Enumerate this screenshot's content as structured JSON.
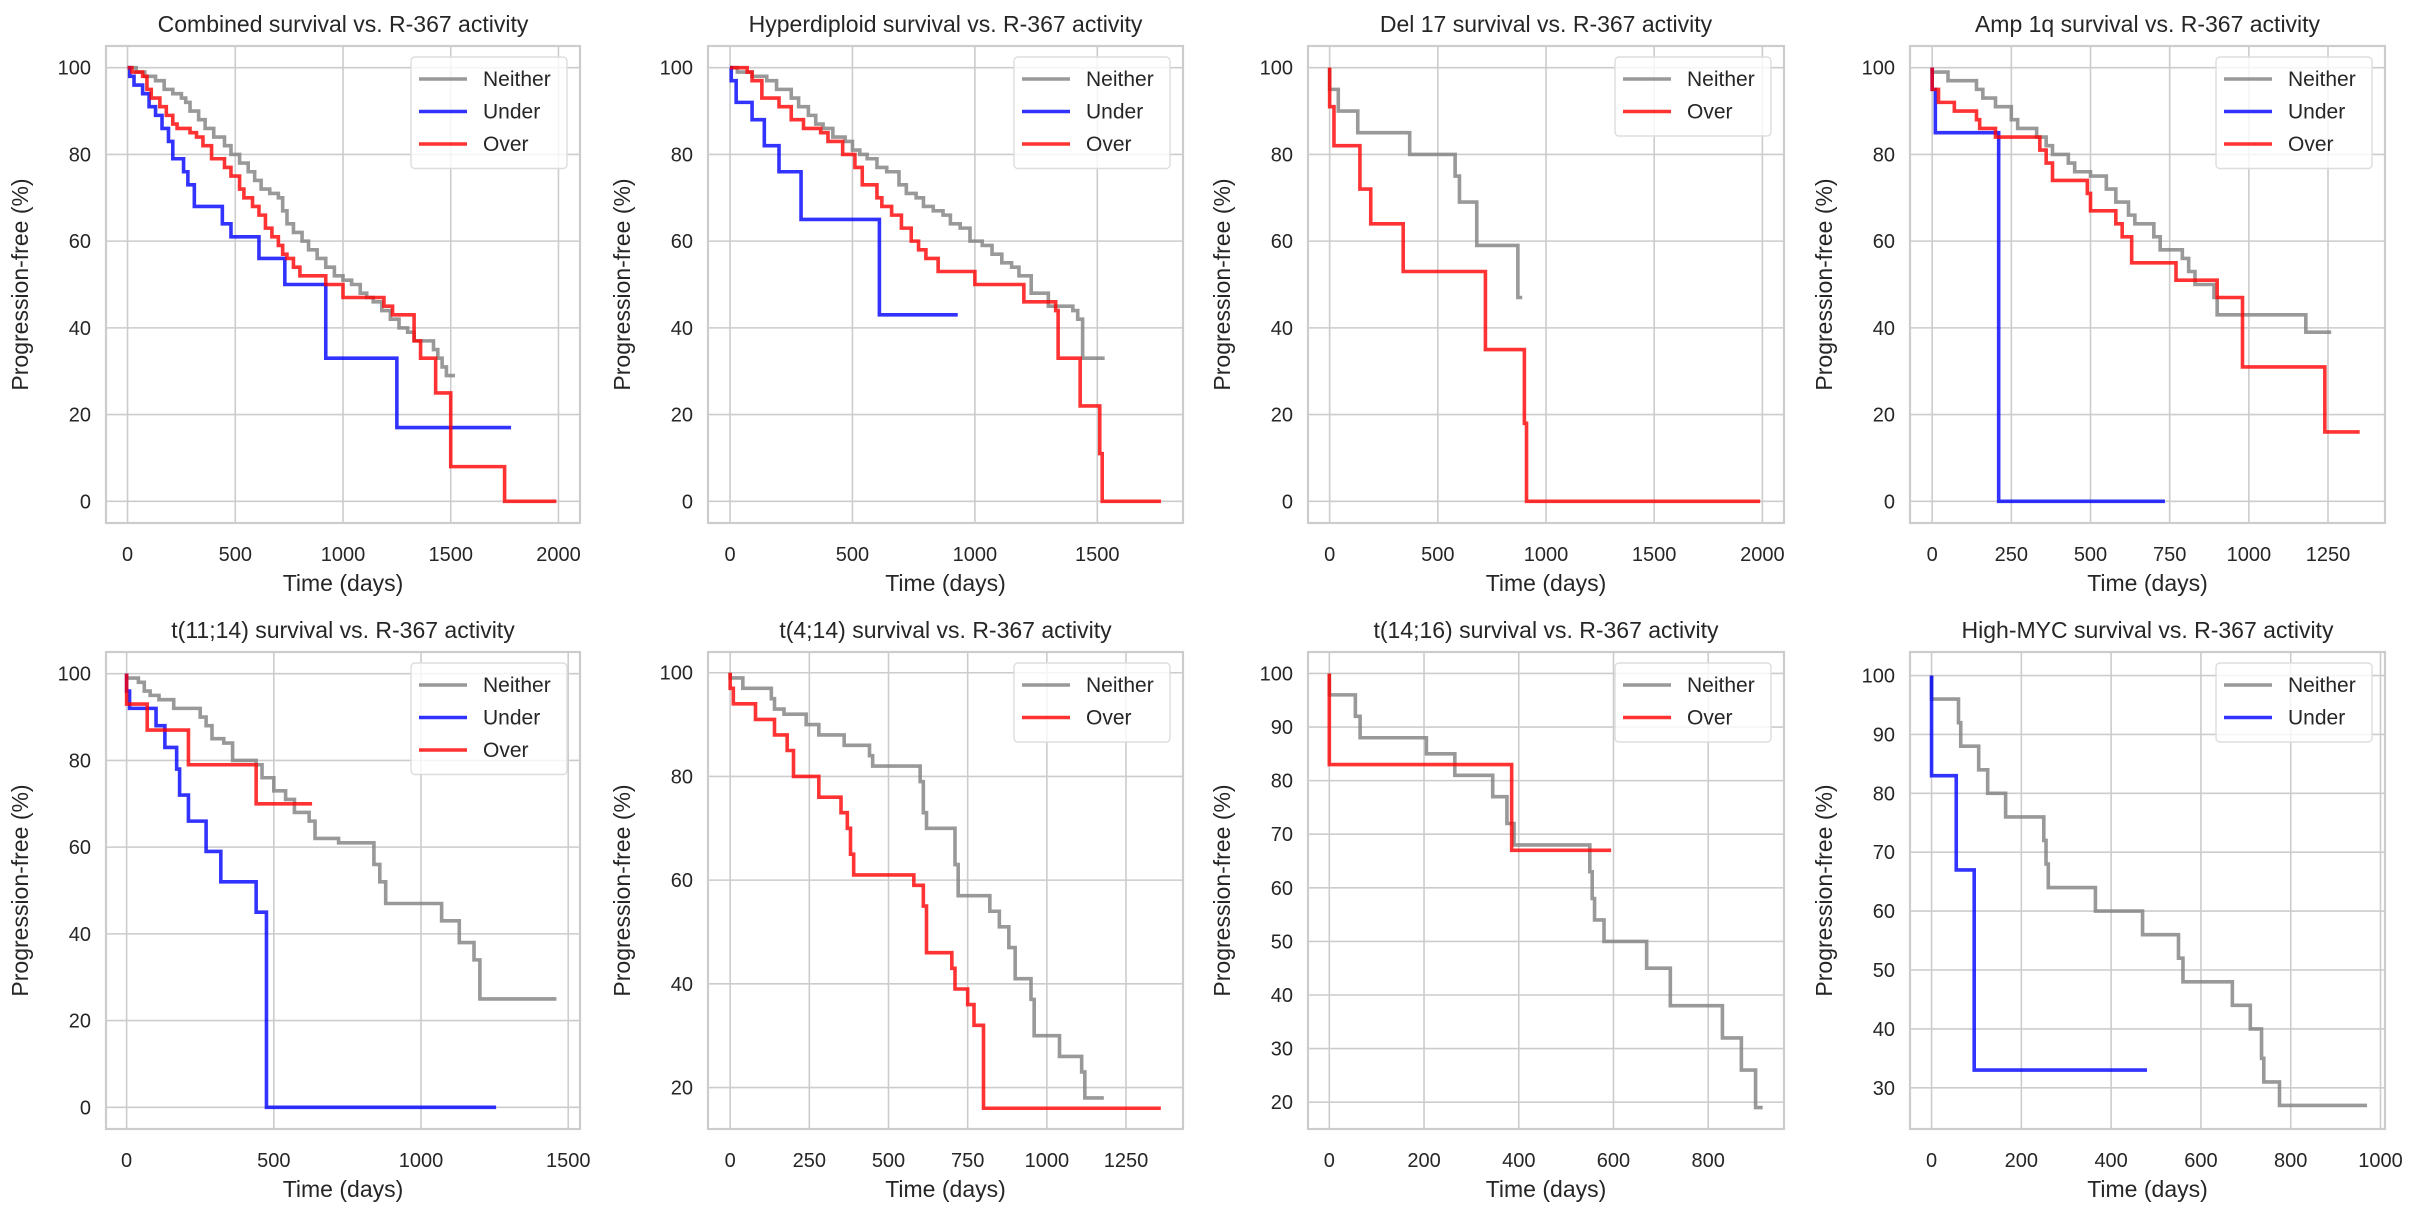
{
  "figure": {
    "xlabel": "Time (days)",
    "ylabel": "Progression-free (%)",
    "colors": {
      "Neither": "#808080",
      "Under": "#0000ff",
      "Over": "#ff0000"
    }
  },
  "chart_data": [
    {
      "type": "line",
      "title": "Combined survival vs. R-367 activity",
      "xlabel": "Time (days)",
      "ylabel": "Progression-free (%)",
      "xlim": [
        -100,
        2100
      ],
      "ylim": [
        -5,
        105
      ],
      "xticks": [
        0,
        500,
        1000,
        1500,
        2000
      ],
      "yticks": [
        0,
        20,
        40,
        60,
        80,
        100
      ],
      "grid": true,
      "legend_position": "top-right",
      "series": [
        {
          "name": "Neither",
          "step": true,
          "x": [
            0,
            40,
            80,
            130,
            170,
            210,
            250,
            270,
            290,
            330,
            360,
            400,
            450,
            480,
            520,
            560,
            590,
            620,
            660,
            700,
            720,
            740,
            770,
            810,
            840,
            880,
            920,
            960,
            1000,
            1040,
            1080,
            1110,
            1140,
            1180,
            1220,
            1260,
            1300,
            1330,
            1370,
            1420,
            1440,
            1460,
            1480,
            1520
          ],
          "y": [
            100,
            99,
            98,
            97,
            95,
            94,
            93,
            92,
            90,
            88,
            86,
            84,
            82,
            80,
            78,
            76,
            74,
            72,
            71,
            70,
            67,
            64,
            62,
            60,
            58,
            56,
            54,
            52,
            51,
            50,
            48,
            47,
            46,
            44,
            42,
            40,
            39,
            37,
            37,
            35,
            33,
            31,
            29,
            29
          ]
        },
        {
          "name": "Under",
          "step": true,
          "x": [
            0,
            10,
            30,
            70,
            100,
            130,
            160,
            190,
            210,
            260,
            280,
            310,
            440,
            480,
            610,
            730,
            920,
            1250,
            1780
          ],
          "y": [
            100,
            98,
            96,
            94,
            91,
            89,
            86,
            83,
            79,
            76,
            73,
            68,
            64,
            61,
            56,
            50,
            33,
            17,
            17
          ]
        },
        {
          "name": "Over",
          "step": true,
          "x": [
            0,
            20,
            70,
            90,
            110,
            150,
            180,
            210,
            230,
            290,
            320,
            350,
            390,
            450,
            480,
            520,
            540,
            580,
            610,
            640,
            670,
            700,
            720,
            740,
            770,
            800,
            920,
            1000,
            1190,
            1230,
            1330,
            1360,
            1430,
            1500,
            1750,
            1990
          ],
          "y": [
            100,
            99,
            98,
            95,
            93,
            91,
            89,
            87,
            86,
            85,
            84,
            82,
            79,
            77,
            75,
            72,
            70,
            68,
            66,
            63,
            61,
            59,
            57,
            56,
            54,
            52,
            50,
            47,
            45,
            43,
            37,
            33,
            25,
            8,
            0,
            0
          ]
        }
      ]
    },
    {
      "type": "line",
      "title": "Hyperdiploid survival vs. R-367 activity",
      "xlabel": "Time (days)",
      "ylabel": "Progression-free (%)",
      "xlim": [
        -90,
        1850
      ],
      "ylim": [
        -5,
        105
      ],
      "xticks": [
        0,
        500,
        1000,
        1500
      ],
      "yticks": [
        0,
        20,
        40,
        60,
        80,
        100
      ],
      "grid": true,
      "legend_position": "top-right",
      "series": [
        {
          "name": "Neither",
          "step": true,
          "x": [
            0,
            30,
            90,
            150,
            190,
            250,
            280,
            320,
            350,
            380,
            420,
            470,
            500,
            530,
            560,
            600,
            640,
            690,
            720,
            760,
            790,
            830,
            870,
            900,
            940,
            980,
            1030,
            1070,
            1110,
            1150,
            1180,
            1230,
            1300,
            1400,
            1420,
            1440,
            1530
          ],
          "y": [
            100,
            99,
            98,
            97,
            95,
            93,
            91,
            89,
            87,
            86,
            84,
            83,
            81,
            80,
            79,
            77,
            76,
            73,
            71,
            70,
            68,
            67,
            66,
            64,
            63,
            60,
            59,
            57,
            55,
            54,
            52,
            48,
            45,
            44,
            42,
            33,
            33
          ]
        },
        {
          "name": "Under",
          "step": true,
          "x": [
            0,
            5,
            25,
            90,
            140,
            200,
            290,
            610,
            930
          ],
          "y": [
            100,
            97,
            92,
            88,
            82,
            76,
            65,
            43,
            43
          ]
        },
        {
          "name": "Over",
          "step": true,
          "x": [
            0,
            70,
            90,
            130,
            200,
            250,
            300,
            370,
            400,
            460,
            510,
            540,
            600,
            620,
            660,
            700,
            740,
            770,
            800,
            850,
            1000,
            1200,
            1330,
            1340,
            1430,
            1510,
            1520,
            1760
          ],
          "y": [
            100,
            99,
            97,
            93,
            91,
            88,
            86,
            85,
            83,
            80,
            77,
            73,
            70,
            68,
            66,
            63,
            60,
            58,
            56,
            53,
            50,
            46,
            44,
            33,
            22,
            11,
            0,
            0
          ]
        }
      ]
    },
    {
      "type": "line",
      "title": "Del 17 survival vs. R-367 activity",
      "xlabel": "Time (days)",
      "ylabel": "Progression-free (%)",
      "xlim": [
        -100,
        2100
      ],
      "ylim": [
        -5,
        105
      ],
      "xticks": [
        0,
        500,
        1000,
        1500,
        2000
      ],
      "yticks": [
        0,
        20,
        40,
        60,
        80,
        100
      ],
      "grid": true,
      "legend_position": "top-right",
      "series": [
        {
          "name": "Neither",
          "step": true,
          "x": [
            0,
            40,
            130,
            370,
            580,
            600,
            680,
            870,
            890
          ],
          "y": [
            95,
            90,
            85,
            80,
            75,
            69,
            59,
            47,
            47
          ]
        },
        {
          "name": "Over",
          "step": true,
          "x": [
            0,
            20,
            140,
            190,
            340,
            720,
            900,
            910,
            1990
          ],
          "y": [
            91,
            82,
            72,
            64,
            53,
            35,
            18,
            0,
            0
          ]
        }
      ]
    },
    {
      "type": "line",
      "title": "Amp 1q survival vs. R-367 activity",
      "xlabel": "Time (days)",
      "ylabel": "Progression-free (%)",
      "xlim": [
        -70,
        1430
      ],
      "ylim": [
        -5,
        105
      ],
      "xticks": [
        0,
        250,
        500,
        750,
        1000,
        1250
      ],
      "yticks": [
        0,
        20,
        40,
        60,
        80,
        100
      ],
      "grid": true,
      "legend_position": "top-right",
      "series": [
        {
          "name": "Neither",
          "step": true,
          "x": [
            0,
            50,
            140,
            160,
            200,
            250,
            270,
            330,
            360,
            380,
            430,
            450,
            500,
            550,
            580,
            620,
            640,
            700,
            720,
            790,
            810,
            830,
            890,
            900,
            1180,
            1260
          ],
          "y": [
            99,
            97,
            95,
            93,
            91,
            88,
            86,
            84,
            82,
            80,
            78,
            76,
            75,
            72,
            69,
            66,
            64,
            61,
            58,
            56,
            53,
            50,
            47,
            43,
            39,
            39
          ]
        },
        {
          "name": "Under",
          "step": true,
          "x": [
            0,
            10,
            210,
            735
          ],
          "y": [
            95,
            85,
            0,
            0
          ]
        },
        {
          "name": "Over",
          "step": true,
          "x": [
            0,
            20,
            70,
            140,
            150,
            200,
            340,
            360,
            380,
            490,
            500,
            580,
            600,
            630,
            770,
            900,
            980,
            1240,
            1350
          ],
          "y": [
            95,
            92,
            90,
            88,
            86,
            84,
            81,
            78,
            74,
            71,
            67,
            64,
            61,
            55,
            51,
            47,
            31,
            16,
            16
          ]
        }
      ]
    },
    {
      "type": "line",
      "title": "t(11;14) survival vs. R-367 activity",
      "xlabel": "Time (days)",
      "ylabel": "Progression-free (%)",
      "xlim": [
        -70,
        1540
      ],
      "ylim": [
        -5,
        105
      ],
      "xticks": [
        0,
        500,
        1000,
        1500
      ],
      "yticks": [
        0,
        20,
        40,
        60,
        80,
        100
      ],
      "grid": true,
      "legend_position": "top-right",
      "series": [
        {
          "name": "Neither",
          "step": true,
          "x": [
            0,
            40,
            60,
            80,
            110,
            160,
            250,
            270,
            290,
            330,
            360,
            440,
            460,
            500,
            540,
            570,
            620,
            640,
            720,
            840,
            860,
            880,
            1070,
            1130,
            1180,
            1200,
            1460
          ],
          "y": [
            99,
            98,
            96,
            95,
            94,
            92,
            90,
            88,
            85,
            84,
            80,
            79,
            76,
            73,
            71,
            68,
            66,
            62,
            61,
            56,
            52,
            47,
            43,
            38,
            34,
            25,
            25
          ]
        },
        {
          "name": "Under",
          "step": true,
          "x": [
            0,
            10,
            100,
            130,
            170,
            180,
            210,
            270,
            320,
            440,
            475,
            1255
          ],
          "y": [
            96,
            92,
            88,
            83,
            78,
            72,
            66,
            59,
            52,
            45,
            0,
            0
          ]
        },
        {
          "name": "Over",
          "step": true,
          "x": [
            0,
            70,
            210,
            440,
            630
          ],
          "y": [
            93,
            87,
            79,
            70,
            70
          ]
        }
      ]
    },
    {
      "type": "line",
      "title": "t(4;14) survival vs. R-367 activity",
      "xlabel": "Time (days)",
      "ylabel": "Progression-free (%)",
      "xlim": [
        -70,
        1430
      ],
      "ylim": [
        12,
        104
      ],
      "xticks": [
        0,
        250,
        500,
        750,
        1000,
        1250
      ],
      "yticks": [
        20,
        40,
        60,
        80,
        100
      ],
      "grid": true,
      "legend_position": "top-right",
      "series": [
        {
          "name": "Neither",
          "step": true,
          "x": [
            0,
            40,
            130,
            140,
            170,
            240,
            280,
            360,
            440,
            450,
            600,
            610,
            620,
            710,
            720,
            820,
            850,
            880,
            900,
            950,
            960,
            1040,
            1110,
            1120,
            1180
          ],
          "y": [
            99,
            97,
            95,
            93,
            92,
            90,
            88,
            86,
            84,
            82,
            79,
            73,
            70,
            63,
            57,
            54,
            51,
            47,
            41,
            37,
            30,
            26,
            23,
            18,
            18
          ]
        },
        {
          "name": "Over",
          "step": true,
          "x": [
            0,
            10,
            80,
            140,
            180,
            200,
            280,
            350,
            370,
            380,
            390,
            580,
            610,
            620,
            700,
            710,
            750,
            770,
            800,
            1360
          ],
          "y": [
            97,
            94,
            91,
            88,
            85,
            80,
            76,
            73,
            70,
            65,
            61,
            59,
            55,
            46,
            43,
            39,
            36,
            32,
            16,
            16
          ]
        }
      ]
    },
    {
      "type": "line",
      "title": "t(14;16) survival vs. R-367 activity",
      "xlabel": "Time (days)",
      "ylabel": "Progression-free (%)",
      "xlim": [
        -45,
        960
      ],
      "ylim": [
        15,
        104
      ],
      "xticks": [
        0,
        200,
        400,
        600,
        800
      ],
      "yticks": [
        20,
        30,
        40,
        50,
        60,
        70,
        80,
        90,
        100
      ],
      "grid": true,
      "legend_position": "top-right",
      "series": [
        {
          "name": "Neither",
          "step": true,
          "x": [
            0,
            55,
            65,
            205,
            265,
            345,
            375,
            390,
            550,
            555,
            560,
            580,
            670,
            720,
            830,
            870,
            900,
            915
          ],
          "y": [
            96,
            92,
            88,
            85,
            81,
            77,
            72,
            68,
            63,
            58,
            54,
            50,
            45,
            38,
            32,
            26,
            19,
            19
          ]
        },
        {
          "name": "Over",
          "step": true,
          "x": [
            0,
            385,
            595
          ],
          "y": [
            83,
            67,
            67
          ]
        }
      ]
    },
    {
      "type": "line",
      "title": "High-MYC survival vs. R-367 activity",
      "xlabel": "Time (days)",
      "ylabel": "Progression-free (%)",
      "xlim": [
        -48,
        1010
      ],
      "ylim": [
        23,
        104
      ],
      "xticks": [
        0,
        200,
        400,
        600,
        800,
        1000
      ],
      "yticks": [
        30,
        40,
        50,
        60,
        70,
        80,
        90,
        100
      ],
      "grid": true,
      "legend_position": "top-right",
      "series": [
        {
          "name": "Neither",
          "step": true,
          "x": [
            0,
            60,
            65,
            105,
            125,
            165,
            250,
            255,
            260,
            365,
            470,
            550,
            560,
            670,
            710,
            735,
            740,
            775,
            970
          ],
          "y": [
            96,
            92,
            88,
            84,
            80,
            76,
            72,
            68,
            64,
            60,
            56,
            52,
            48,
            44,
            40,
            35,
            31,
            27,
            27
          ]
        },
        {
          "name": "Under",
          "step": true,
          "x": [
            0,
            55,
            95,
            480
          ],
          "y": [
            83,
            67,
            33,
            33
          ]
        }
      ]
    }
  ]
}
